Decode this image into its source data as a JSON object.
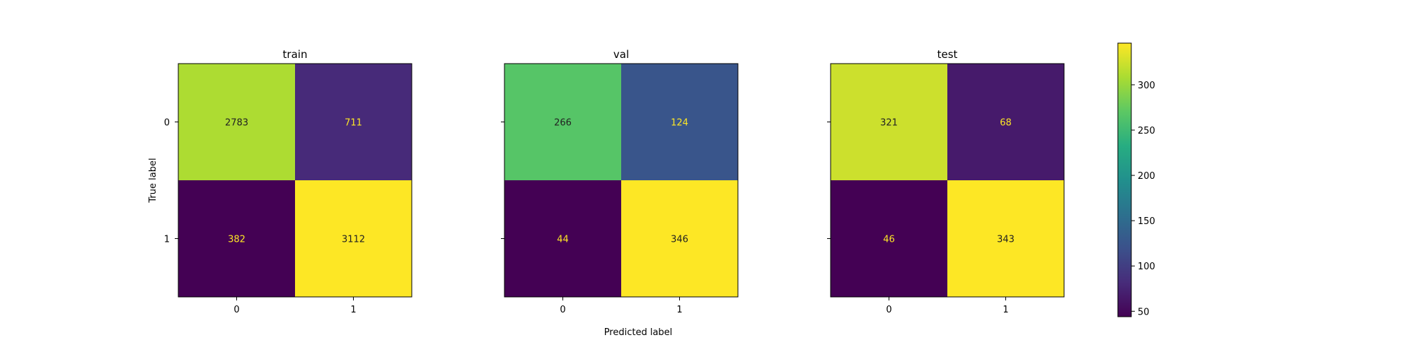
{
  "chart_data": [
    {
      "type": "heatmap",
      "title": "train",
      "ylabel": "True label",
      "x_ticks": [
        "0",
        "1"
      ],
      "y_ticks": [
        "0",
        "1"
      ],
      "matrix": [
        [
          2783,
          711
        ],
        [
          382,
          3112
        ]
      ]
    },
    {
      "type": "heatmap",
      "title": "val",
      "x_ticks": [
        "0",
        "1"
      ],
      "y_ticks": [
        "0",
        "1"
      ],
      "matrix": [
        [
          266,
          124
        ],
        [
          44,
          346
        ]
      ]
    },
    {
      "type": "heatmap",
      "title": "test",
      "x_ticks": [
        "0",
        "1"
      ],
      "y_ticks": [
        "0",
        "1"
      ],
      "matrix": [
        [
          321,
          68
        ],
        [
          46,
          343
        ]
      ]
    }
  ],
  "shared_xlabel": "Predicted label",
  "colorbar": {
    "colormap": "viridis",
    "vmin": 44,
    "vmax": 346,
    "ticks": [
      "50",
      "100",
      "150",
      "200",
      "250",
      "300"
    ]
  },
  "colors": {
    "text_on_dark": "#fde725",
    "text_on_light": "#222222"
  }
}
